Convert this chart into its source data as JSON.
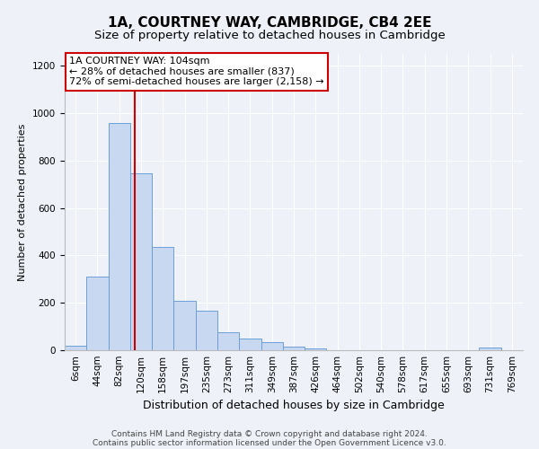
{
  "title": "1A, COURTNEY WAY, CAMBRIDGE, CB4 2EE",
  "subtitle": "Size of property relative to detached houses in Cambridge",
  "xlabel": "Distribution of detached houses by size in Cambridge",
  "ylabel": "Number of detached properties",
  "bar_labels": [
    "6sqm",
    "44sqm",
    "82sqm",
    "120sqm",
    "158sqm",
    "197sqm",
    "235sqm",
    "273sqm",
    "311sqm",
    "349sqm",
    "387sqm",
    "426sqm",
    "464sqm",
    "502sqm",
    "540sqm",
    "578sqm",
    "617sqm",
    "655sqm",
    "693sqm",
    "731sqm",
    "769sqm"
  ],
  "bar_values": [
    20,
    310,
    960,
    745,
    435,
    210,
    165,
    75,
    48,
    33,
    15,
    8,
    0,
    0,
    0,
    0,
    0,
    0,
    0,
    12,
    0
  ],
  "bar_color": "#c8d8f0",
  "bar_edge_color": "#6a9fd8",
  "vline_color": "#cc0000",
  "vline_x_index": 2.72,
  "annotation_text": "1A COURTNEY WAY: 104sqm\n← 28% of detached houses are smaller (837)\n72% of semi-detached houses are larger (2,158) →",
  "annotation_box_color": "#ffffff",
  "annotation_box_edge_color": "#cc0000",
  "ylim": [
    0,
    1250
  ],
  "yticks": [
    0,
    200,
    400,
    600,
    800,
    1000,
    1200
  ],
  "footer_line1": "Contains HM Land Registry data © Crown copyright and database right 2024.",
  "footer_line2": "Contains public sector information licensed under the Open Government Licence v3.0.",
  "background_color": "#eef2f8",
  "grid_color": "#ffffff",
  "title_fontsize": 11,
  "subtitle_fontsize": 9.5,
  "xlabel_fontsize": 9,
  "ylabel_fontsize": 8,
  "tick_fontsize": 7.5,
  "footer_fontsize": 6.5,
  "annotation_fontsize": 8
}
